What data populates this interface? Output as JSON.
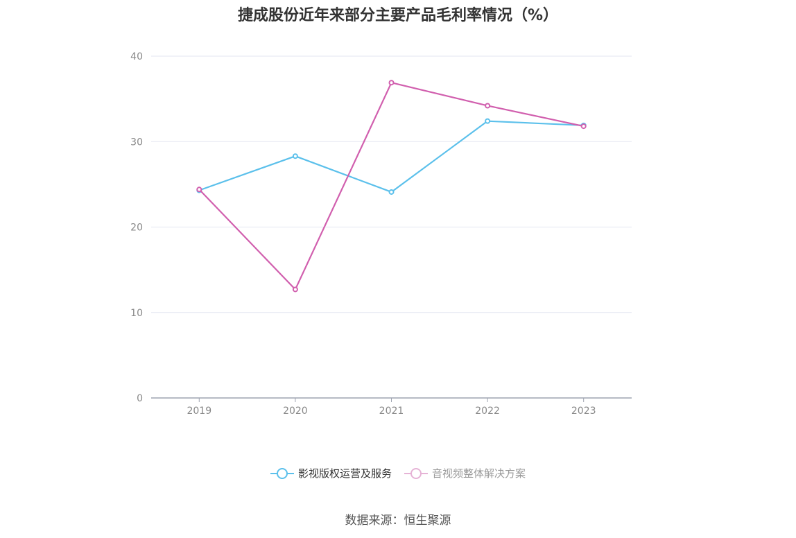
{
  "title": "捷成股份近年来部分主要产品毛利率情况（%）",
  "source": "数据来源：恒生聚源",
  "chart_data": {
    "type": "line",
    "title": "捷成股份近年来部分主要产品毛利率情况（%）",
    "categories": [
      "2019",
      "2020",
      "2021",
      "2022",
      "2023"
    ],
    "series": [
      {
        "name": "影视版权运营及服务",
        "color": "#5bc0eb",
        "values": [
          24.3,
          28.3,
          24.1,
          32.4,
          31.9
        ]
      },
      {
        "name": "音视频整体解决方案",
        "color": "#d15fae",
        "values": [
          24.4,
          12.7,
          36.9,
          34.2,
          31.8
        ]
      }
    ],
    "yticks": [
      0,
      10,
      20,
      30,
      40
    ],
    "ylim": [
      0,
      40
    ],
    "grid": true,
    "legend": "bottom",
    "colors": {
      "grid": "#e3e6f0",
      "axis": "#9ea3b0",
      "tick_label": "#888888"
    }
  }
}
